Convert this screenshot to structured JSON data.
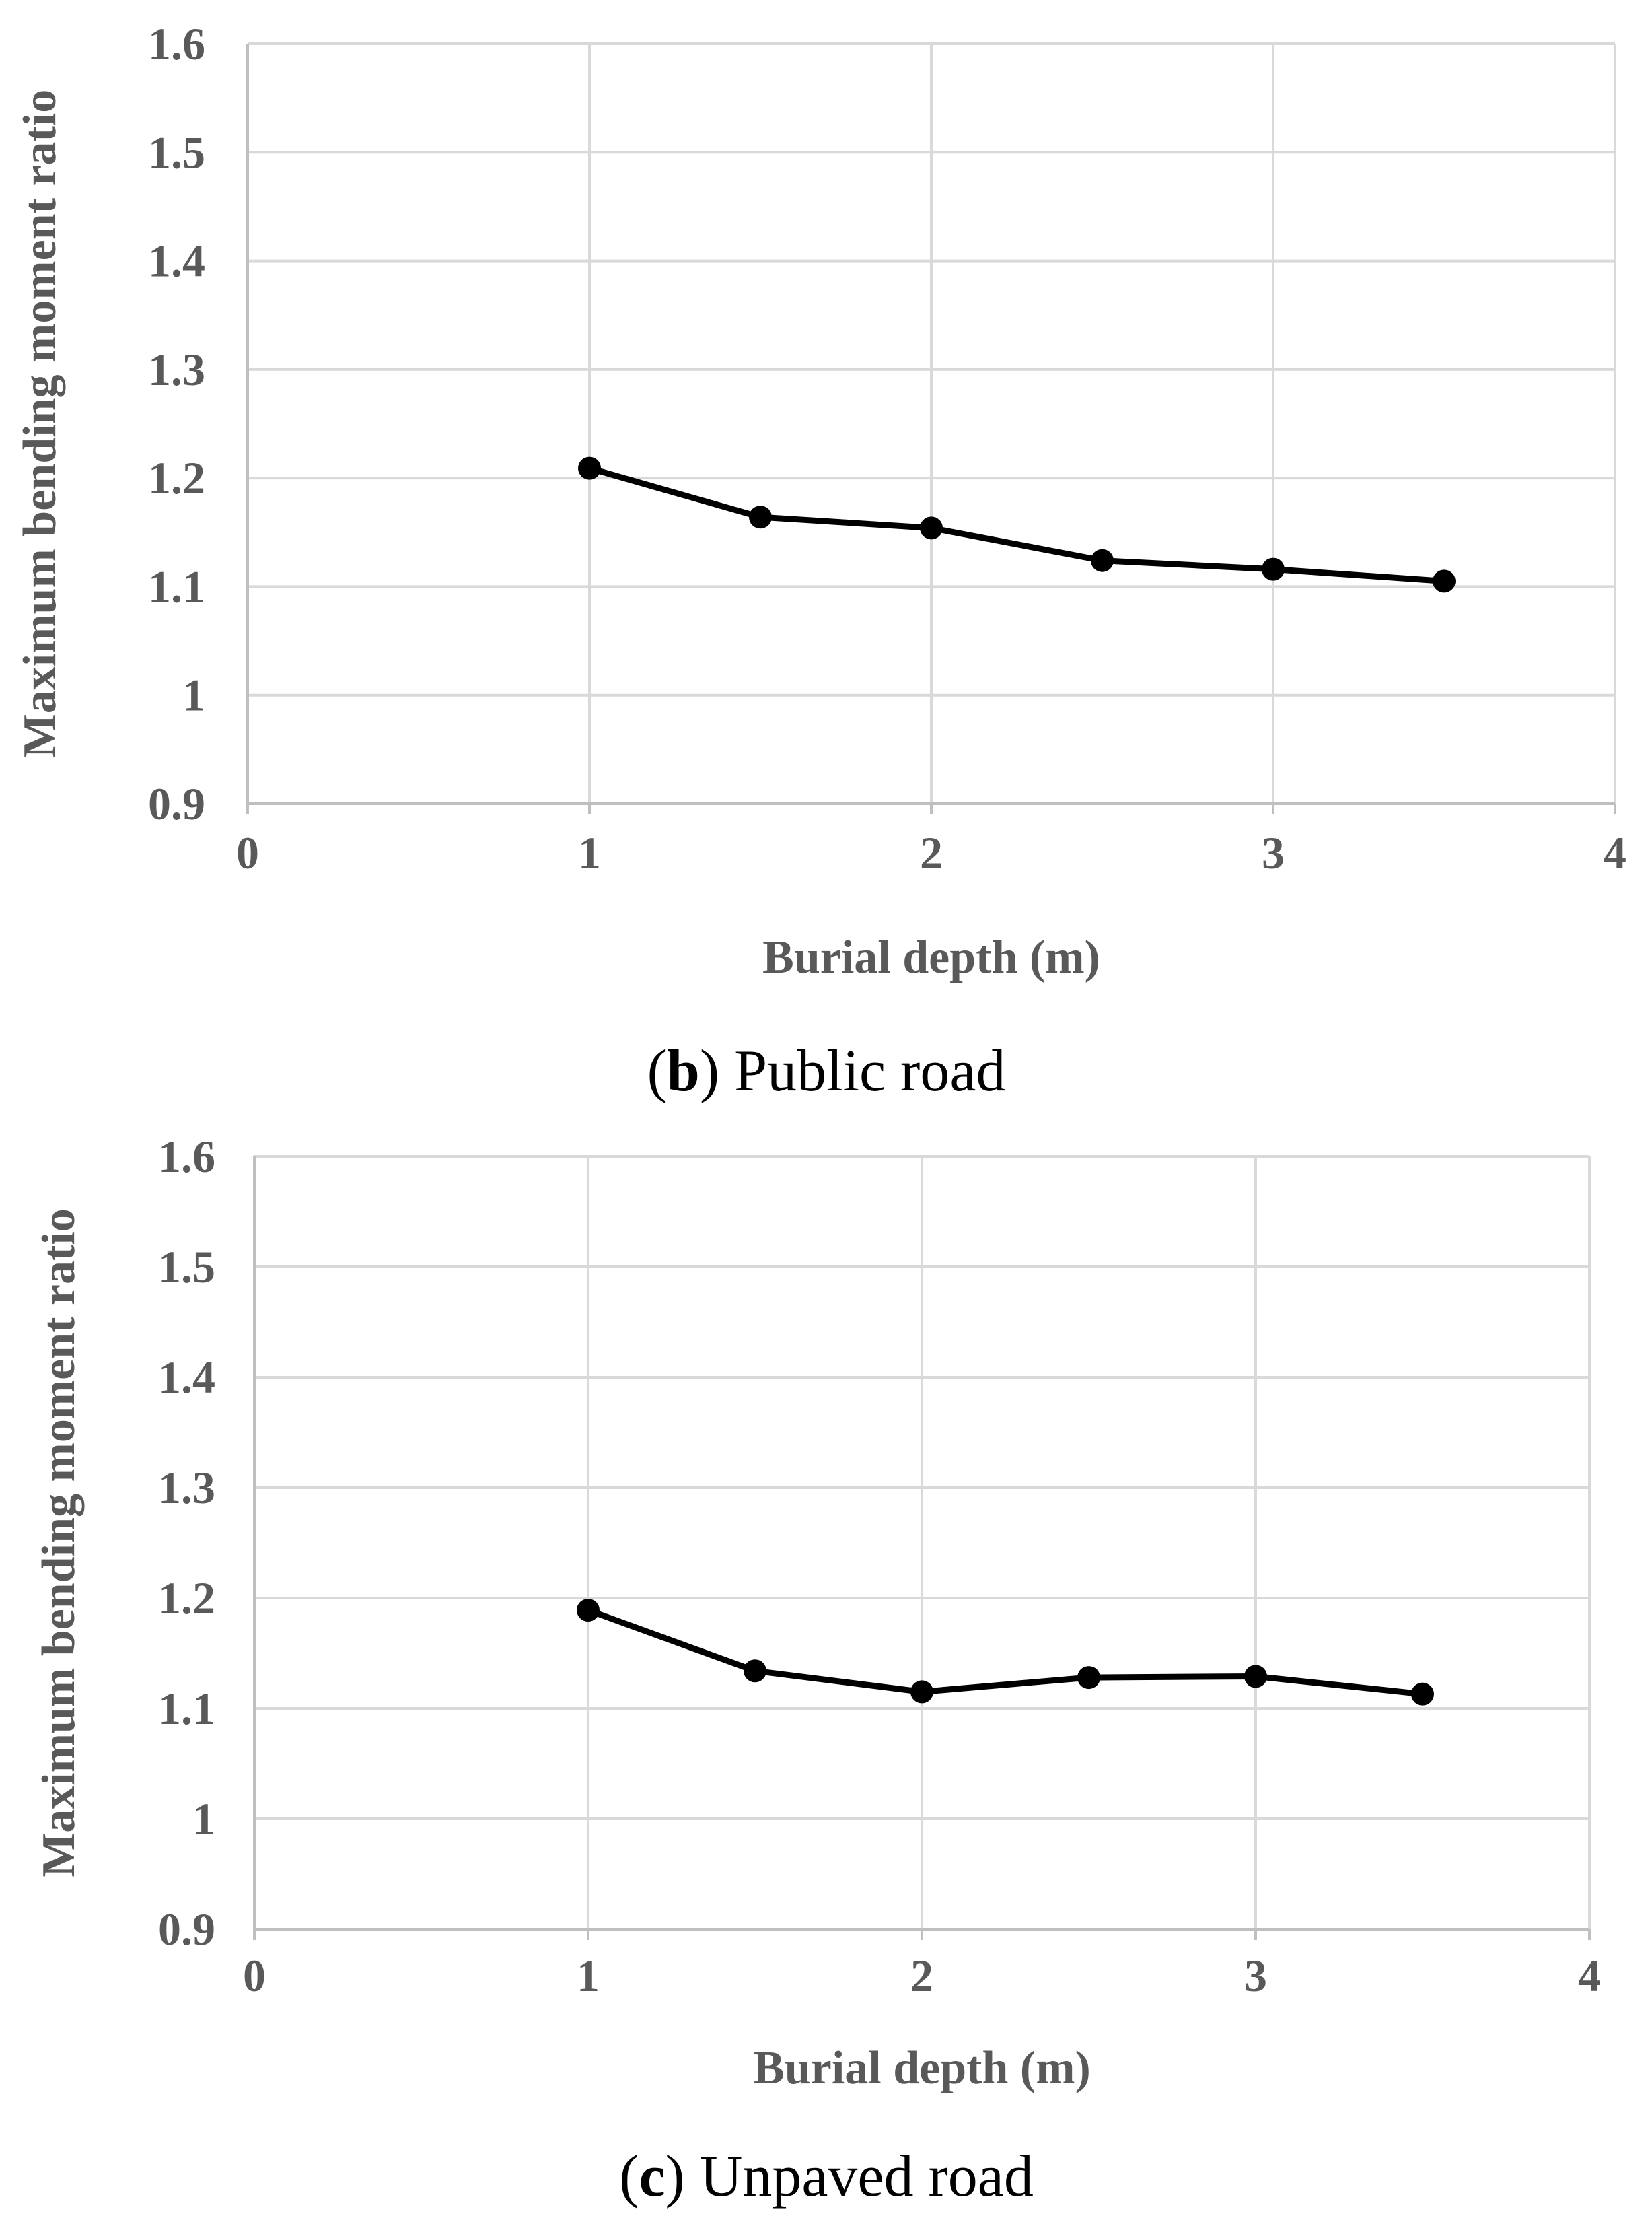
{
  "chart_data": [
    {
      "type": "line",
      "id": "public",
      "caption": {
        "open": "(",
        "letter": "b",
        "rest": ") Public road"
      },
      "xlabel": "Burial depth (m)",
      "ylabel": "Maximum bending moment ratio",
      "xlim": [
        0,
        4
      ],
      "ylim": [
        0.9,
        1.6
      ],
      "xticks": [
        0,
        1,
        2,
        3,
        4
      ],
      "yticks": [
        0.9,
        1.0,
        1.1,
        1.2,
        1.3,
        1.4,
        1.5,
        1.6
      ],
      "xtick_labels": [
        "0",
        "1",
        "2",
        "3",
        "4"
      ],
      "ytick_labels": [
        "0.9",
        "1",
        "1.1",
        "1.2",
        "1.3",
        "1.4",
        "1.5",
        "1.6"
      ],
      "grid": true,
      "series": [
        {
          "name": "Public road",
          "x": [
            1,
            1.5,
            2,
            2.5,
            3,
            3.5
          ],
          "y": [
            1.209,
            1.164,
            1.154,
            1.124,
            1.116,
            1.105
          ],
          "color": "#000000"
        }
      ]
    },
    {
      "type": "line",
      "id": "unpaved",
      "caption": {
        "open": "(",
        "letter": "c",
        "rest": ") Unpaved road"
      },
      "xlabel": "Burial depth (m)",
      "ylabel": "Maximum bending moment ratio",
      "xlim": [
        0,
        4
      ],
      "ylim": [
        0.9,
        1.6
      ],
      "xticks": [
        0,
        1,
        2,
        3,
        4
      ],
      "yticks": [
        0.9,
        1.0,
        1.1,
        1.2,
        1.3,
        1.4,
        1.5,
        1.6
      ],
      "xtick_labels": [
        "0",
        "1",
        "2",
        "3",
        "4"
      ],
      "ytick_labels": [
        "0.9",
        "1",
        "1.1",
        "1.2",
        "1.3",
        "1.4",
        "1.5",
        "1.6"
      ],
      "grid": true,
      "series": [
        {
          "name": "Unpaved road",
          "x": [
            1,
            1.5,
            2,
            2.5,
            3,
            3.5
          ],
          "y": [
            1.189,
            1.134,
            1.115,
            1.128,
            1.129,
            1.113
          ],
          "color": "#000000"
        }
      ]
    }
  ]
}
